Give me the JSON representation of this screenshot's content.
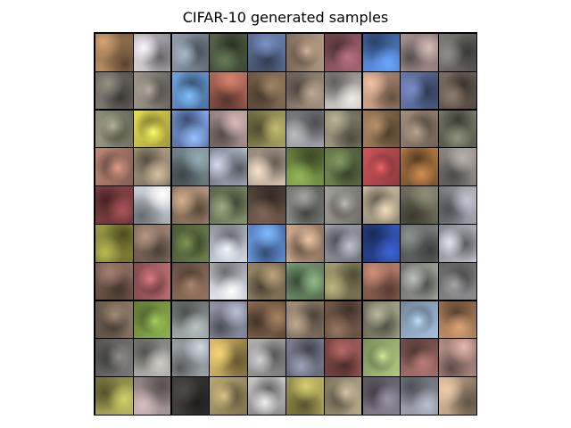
{
  "figure": {
    "title": "CIFAR-10 generated samples",
    "grid": {
      "rows": 10,
      "cols": 10
    }
  },
  "colors": {
    "background": "#ffffff",
    "separator": "#000000"
  },
  "samples": [
    [
      "#a07a55",
      "#b9b6bb",
      "#7d8a96",
      "#4d5a42",
      "#5a6d92",
      "#9b8572",
      "#8b5660",
      "#4f7bc2",
      "#9f8c89",
      "#6a6966"
    ],
    [
      "#6f6a61",
      "#878178",
      "#5f8fc4",
      "#a06050",
      "#79634d",
      "#8c7e6e",
      "#b2aeaa",
      "#b49078",
      "#596a96",
      "#6a5e54"
    ],
    [
      "#85846f",
      "#c8c04a",
      "#6f8fcc",
      "#9f8a88",
      "#8f8a54",
      "#8a8c90",
      "#8a8570",
      "#8a6d4f",
      "#8c7b6c",
      "#6a6d5d"
    ],
    [
      "#a57666",
      "#9d8f78",
      "#6e7f84",
      "#9aa0ae",
      "#b8a796",
      "#6e8742",
      "#617448",
      "#b24a4e",
      "#9a6a3c",
      "#8a8481"
    ],
    [
      "#7f3f42",
      "#bdc2c9",
      "#9f8269",
      "#73805e",
      "#5e4c40",
      "#7a7b76",
      "#8d8b85",
      "#b3a68e",
      "#6a6958",
      "#90919a"
    ],
    [
      "#8a8a3d",
      "#877061",
      "#5e7041",
      "#b4bac3",
      "#5f8ccf",
      "#b1937a",
      "#8f8f9a",
      "#2d4a9d",
      "#6b6d6d",
      "#a8a8b0"
    ],
    [
      "#7a5f52",
      "#a45e63",
      "#816553",
      "#c5c7cf",
      "#8b7a5c",
      "#6a8a64",
      "#8c8760",
      "#9a6a5a",
      "#8d9089",
      "#7b7b7c"
    ],
    [
      "#786858",
      "#7c9a45",
      "#8a9192",
      "#8a8e9e",
      "#7c6048",
      "#8d7c6a",
      "#705848",
      "#8b8a74",
      "#8fa7c0",
      "#a47a58"
    ],
    [
      "#6a6968",
      "#999893",
      "#9aa1a6",
      "#b79e58",
      "#9b9a9a",
      "#75788a",
      "#874f4c",
      "#98b070",
      "#8c5e5a",
      "#aa8780"
    ],
    [
      "#9b9a4f",
      "#9e8e8e",
      "#3a3734",
      "#a19163",
      "#b1b0b1",
      "#a09852",
      "#9d9278",
      "#736f7c",
      "#8a8e9a",
      "#b1987e"
    ]
  ]
}
